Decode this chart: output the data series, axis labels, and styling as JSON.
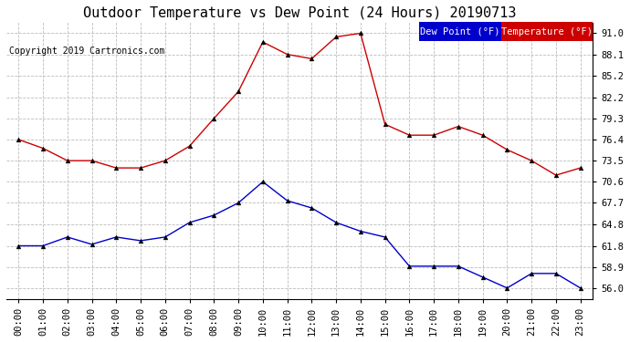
{
  "title": "Outdoor Temperature vs Dew Point (24 Hours) 20190713",
  "copyright": "Copyright 2019 Cartronics.com",
  "background_color": "#ffffff",
  "plot_bg_color": "#ffffff",
  "grid_color": "#bbbbbb",
  "x_labels": [
    "00:00",
    "01:00",
    "02:00",
    "03:00",
    "04:00",
    "05:00",
    "06:00",
    "07:00",
    "08:00",
    "09:00",
    "10:00",
    "11:00",
    "12:00",
    "13:00",
    "14:00",
    "15:00",
    "16:00",
    "17:00",
    "18:00",
    "19:00",
    "20:00",
    "21:00",
    "22:00",
    "23:00"
  ],
  "y_ticks": [
    56.0,
    58.9,
    61.8,
    64.8,
    67.7,
    70.6,
    73.5,
    76.4,
    79.3,
    82.2,
    85.2,
    88.1,
    91.0
  ],
  "temperature": [
    76.4,
    75.2,
    73.5,
    73.5,
    72.5,
    72.5,
    73.5,
    75.5,
    79.3,
    83.0,
    89.8,
    88.1,
    87.5,
    90.5,
    91.0,
    78.5,
    77.0,
    77.0,
    78.2,
    77.0,
    75.0,
    73.5,
    71.5,
    72.5
  ],
  "dew_point": [
    61.8,
    61.8,
    63.0,
    62.0,
    63.0,
    62.5,
    63.0,
    65.0,
    66.0,
    67.7,
    70.6,
    68.0,
    67.0,
    65.0,
    63.8,
    63.0,
    59.0,
    59.0,
    59.0,
    57.5,
    56.0,
    58.0,
    58.0,
    56.0
  ],
  "temp_color": "#cc0000",
  "dew_color": "#0000cc",
  "legend_dew_bg": "#0000cc",
  "legend_temp_bg": "#cc0000",
  "legend_text_color": "#ffffff",
  "title_fontsize": 11,
  "tick_fontsize": 7.5,
  "copyright_fontsize": 7,
  "legend_fontsize": 7.5,
  "ylim_min": 54.5,
  "ylim_max": 92.5
}
